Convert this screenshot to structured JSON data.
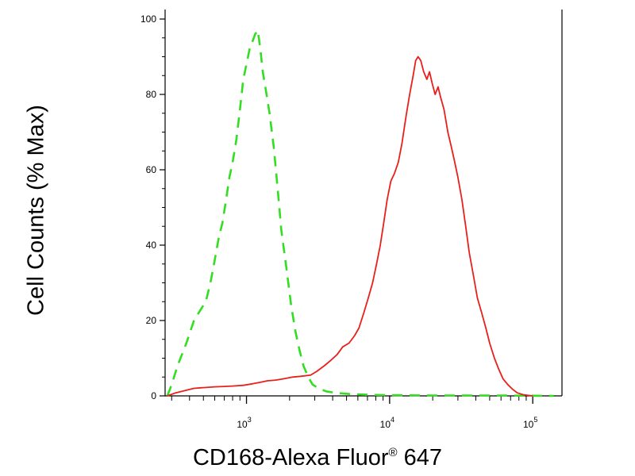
{
  "chart_data": {
    "type": "line",
    "xlabel": {
      "main": "CD168-Alexa Fluor",
      "mark": "®",
      "tail": " 647"
    },
    "ylabel": "Cell Counts (% Max)",
    "x_scale": "log",
    "xlim": [
      270,
      160000
    ],
    "ylim": [
      0,
      100
    ],
    "x_ticks": [
      {
        "base": "10",
        "exp": "3",
        "value": 1000
      },
      {
        "base": "10",
        "exp": "4",
        "value": 10000
      },
      {
        "base": "10",
        "exp": "5",
        "value": 100000
      }
    ],
    "y_ticks": [
      "0",
      "20",
      "40",
      "60",
      "80",
      "100"
    ],
    "grid": false,
    "series": [
      {
        "style": "dashed",
        "color": "#33dd22",
        "points": [
          [
            280,
            0
          ],
          [
            300,
            3
          ],
          [
            330,
            8
          ],
          [
            380,
            14
          ],
          [
            430,
            20
          ],
          [
            480,
            23
          ],
          [
            520,
            25
          ],
          [
            560,
            30
          ],
          [
            600,
            36
          ],
          [
            640,
            42
          ],
          [
            680,
            46
          ],
          [
            720,
            52
          ],
          [
            760,
            58
          ],
          [
            800,
            62
          ],
          [
            850,
            68
          ],
          [
            900,
            76
          ],
          [
            950,
            84
          ],
          [
            1000,
            88
          ],
          [
            1050,
            92
          ],
          [
            1100,
            94
          ],
          [
            1150,
            96
          ],
          [
            1200,
            97
          ],
          [
            1250,
            92
          ],
          [
            1300,
            86
          ],
          [
            1380,
            80
          ],
          [
            1450,
            75
          ],
          [
            1550,
            66
          ],
          [
            1650,
            55
          ],
          [
            1750,
            44
          ],
          [
            1900,
            34
          ],
          [
            2050,
            24
          ],
          [
            2200,
            17
          ],
          [
            2350,
            12
          ],
          [
            2500,
            8
          ],
          [
            2700,
            5
          ],
          [
            2900,
            3
          ],
          [
            3200,
            2
          ],
          [
            3600,
            1.2
          ],
          [
            4200,
            0.8
          ],
          [
            5200,
            0.5
          ],
          [
            7000,
            0.3
          ],
          [
            10000,
            0.2
          ],
          [
            20000,
            0.1
          ],
          [
            60000,
            0.1
          ],
          [
            140000,
            0
          ]
        ]
      },
      {
        "style": "solid",
        "color": "#e8201c",
        "points": [
          [
            280,
            0
          ],
          [
            320,
            0.8
          ],
          [
            380,
            1.5
          ],
          [
            430,
            2
          ],
          [
            500,
            2.2
          ],
          [
            600,
            2.4
          ],
          [
            700,
            2.5
          ],
          [
            800,
            2.6
          ],
          [
            950,
            2.8
          ],
          [
            1100,
            3.2
          ],
          [
            1250,
            3.6
          ],
          [
            1400,
            4
          ],
          [
            1600,
            4.2
          ],
          [
            1800,
            4.5
          ],
          [
            2100,
            5
          ],
          [
            2400,
            5.2
          ],
          [
            2800,
            5.5
          ],
          [
            3100,
            6.5
          ],
          [
            3500,
            8
          ],
          [
            3900,
            9.5
          ],
          [
            4300,
            11
          ],
          [
            4700,
            13
          ],
          [
            5200,
            14
          ],
          [
            5700,
            16
          ],
          [
            6100,
            18
          ],
          [
            6600,
            22
          ],
          [
            7100,
            26
          ],
          [
            7600,
            30
          ],
          [
            8100,
            35
          ],
          [
            8600,
            40
          ],
          [
            9100,
            46
          ],
          [
            9600,
            52
          ],
          [
            10200,
            57
          ],
          [
            10800,
            59
          ],
          [
            11500,
            62
          ],
          [
            12200,
            67
          ],
          [
            13000,
            74
          ],
          [
            13800,
            80
          ],
          [
            14600,
            85
          ],
          [
            15200,
            89
          ],
          [
            15800,
            90
          ],
          [
            16500,
            89
          ],
          [
            17300,
            86
          ],
          [
            18200,
            84
          ],
          [
            19000,
            86
          ],
          [
            19800,
            83
          ],
          [
            20800,
            80
          ],
          [
            21800,
            82
          ],
          [
            22800,
            79
          ],
          [
            24000,
            76
          ],
          [
            25500,
            70
          ],
          [
            27000,
            66
          ],
          [
            28500,
            62
          ],
          [
            30000,
            58
          ],
          [
            32000,
            52
          ],
          [
            34000,
            45
          ],
          [
            36000,
            38
          ],
          [
            38500,
            32
          ],
          [
            41000,
            26
          ],
          [
            44000,
            22
          ],
          [
            47000,
            18
          ],
          [
            50000,
            14
          ],
          [
            54000,
            10
          ],
          [
            58000,
            7
          ],
          [
            62000,
            4.5
          ],
          [
            67000,
            3
          ],
          [
            72000,
            1.8
          ],
          [
            78000,
            0.8
          ],
          [
            86000,
            0.3
          ],
          [
            100000,
            0
          ]
        ]
      }
    ]
  }
}
